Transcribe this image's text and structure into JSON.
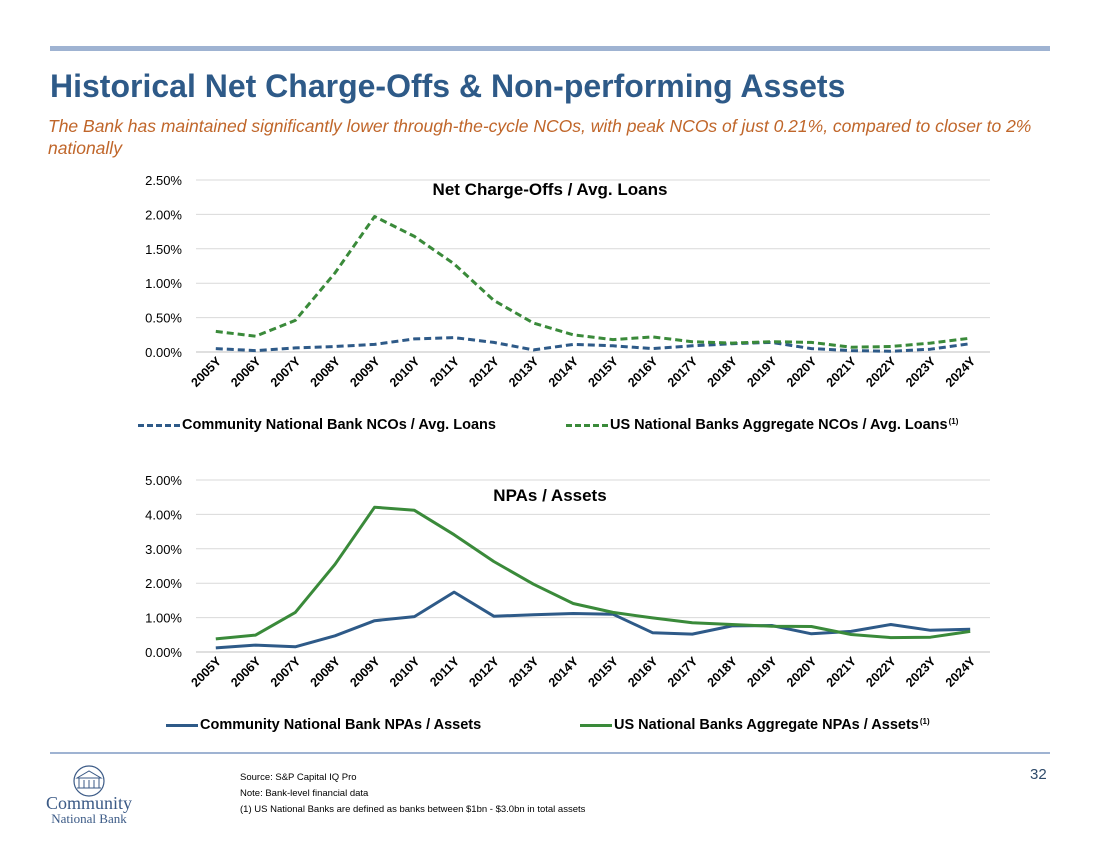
{
  "header": {
    "title": "Historical Net Charge-Offs & Non-performing Assets",
    "subtitle": "The Bank has maintained significantly lower through-the-cycle NCOs, with peak NCOs of just 0.21%, compared to closer to 2% nationally"
  },
  "chart_data": [
    {
      "type": "line",
      "title": "Net Charge-Offs / Avg. Loans",
      "xlabel": "",
      "ylabel": "",
      "ylim": [
        0,
        2.5
      ],
      "yticks": [
        "0.00%",
        "0.50%",
        "1.00%",
        "1.50%",
        "2.00%",
        "2.50%"
      ],
      "grid": true,
      "legend_position": "bottom",
      "categories": [
        "2005Y",
        "2006Y",
        "2007Y",
        "2008Y",
        "2009Y",
        "2010Y",
        "2011Y",
        "2012Y",
        "2013Y",
        "2014Y",
        "2015Y",
        "2016Y",
        "2017Y",
        "2018Y",
        "2019Y",
        "2020Y",
        "2021Y",
        "2022Y",
        "2023Y",
        "2024Y"
      ],
      "series": [
        {
          "name": "Community National Bank NCOs / Avg. Loans",
          "superscript": "",
          "color": "#2e5a88",
          "style": "dashed",
          "values": [
            0.05,
            0.02,
            0.06,
            0.08,
            0.11,
            0.19,
            0.21,
            0.14,
            0.03,
            0.11,
            0.09,
            0.05,
            0.09,
            0.12,
            0.14,
            0.05,
            0.02,
            0.01,
            0.04,
            0.12
          ]
        },
        {
          "name": "US National Banks Aggregate NCOs / Avg. Loans",
          "superscript": "(1)",
          "color": "#3a8a3a",
          "style": "dashed",
          "values": [
            0.3,
            0.23,
            0.46,
            1.15,
            1.97,
            1.68,
            1.28,
            0.75,
            0.42,
            0.25,
            0.18,
            0.22,
            0.15,
            0.13,
            0.15,
            0.14,
            0.07,
            0.08,
            0.13,
            0.2
          ]
        }
      ]
    },
    {
      "type": "line",
      "title": "NPAs / Assets",
      "xlabel": "",
      "ylabel": "",
      "ylim": [
        0,
        5
      ],
      "yticks": [
        "0.00%",
        "1.00%",
        "2.00%",
        "3.00%",
        "4.00%",
        "5.00%"
      ],
      "grid": true,
      "legend_position": "bottom",
      "categories": [
        "2005Y",
        "2006Y",
        "2007Y",
        "2008Y",
        "2009Y",
        "2010Y",
        "2011Y",
        "2012Y",
        "2013Y",
        "2014Y",
        "2015Y",
        "2016Y",
        "2017Y",
        "2018Y",
        "2019Y",
        "2020Y",
        "2021Y",
        "2022Y",
        "2023Y",
        "2024Y"
      ],
      "series": [
        {
          "name": "Community National Bank NPAs / Assets",
          "superscript": "",
          "color": "#2e5a88",
          "style": "solid",
          "values": [
            0.12,
            0.2,
            0.15,
            0.47,
            0.91,
            1.03,
            1.74,
            1.04,
            1.08,
            1.12,
            1.1,
            0.56,
            0.52,
            0.76,
            0.77,
            0.53,
            0.6,
            0.8,
            0.63,
            0.66
          ]
        },
        {
          "name": "US National Banks Aggregate NPAs / Assets",
          "superscript": "(1)",
          "color": "#3a8a3a",
          "style": "solid",
          "values": [
            0.38,
            0.49,
            1.15,
            2.55,
            4.21,
            4.12,
            3.41,
            2.63,
            1.97,
            1.41,
            1.15,
            0.99,
            0.85,
            0.8,
            0.75,
            0.74,
            0.51,
            0.42,
            0.43,
            0.6
          ]
        }
      ]
    }
  ],
  "footer": {
    "notes": [
      "Source: S&P Capital IQ Pro",
      "Note: Bank-level financial data",
      "(1) US National Banks are defined as banks between $1bn - $3.0bn in total assets"
    ],
    "page_number": "32",
    "logo_line1": "Community",
    "logo_line2": "National Bank"
  }
}
